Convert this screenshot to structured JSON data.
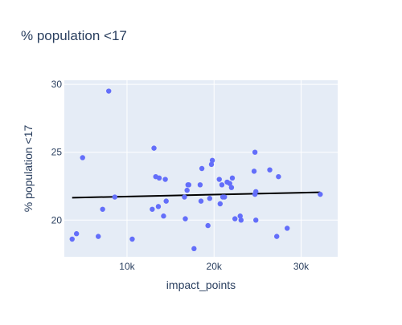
{
  "chart_data": {
    "type": "scatter",
    "title": "% population <17",
    "xlabel": "impact_points",
    "ylabel": "% population <17",
    "xlim": [
      2800,
      34200
    ],
    "ylim": [
      17.3,
      30.3
    ],
    "x_ticks": [
      {
        "value": 10000,
        "label": "10k"
      },
      {
        "value": 20000,
        "label": "20k"
      },
      {
        "value": 30000,
        "label": "30k"
      }
    ],
    "y_ticks": [
      {
        "value": 20,
        "label": "20"
      },
      {
        "value": 25,
        "label": "25"
      },
      {
        "value": 30,
        "label": "30"
      }
    ],
    "grid": true,
    "colors": {
      "plot_bg": "#e5ecf6",
      "marker": "#636efa",
      "trend": "#000000",
      "text": "#2a3f5f",
      "grid": "#ffffff"
    },
    "series": [
      {
        "mode": "markers",
        "x": [
          3700,
          4200,
          4900,
          6700,
          7200,
          7900,
          8600,
          10600,
          12900,
          13100,
          13300,
          13600,
          13700,
          14200,
          14400,
          14500,
          16600,
          16700,
          16900,
          17000,
          17100,
          17700,
          18400,
          18500,
          18600,
          19300,
          19500,
          19700,
          19800,
          20600,
          20700,
          20900,
          21000,
          21200,
          21500,
          21800,
          22000,
          22100,
          22400,
          23000,
          23100,
          24600,
          24700,
          24700,
          24800,
          24800,
          26400,
          27200,
          27400,
          28400,
          32200
        ],
        "y": [
          18.6,
          19.0,
          24.6,
          18.8,
          20.8,
          29.5,
          21.7,
          18.6,
          20.8,
          25.3,
          23.2,
          21.0,
          23.1,
          20.3,
          23.0,
          21.4,
          21.7,
          20.1,
          22.2,
          22.6,
          22.6,
          17.9,
          22.6,
          21.4,
          23.8,
          19.6,
          21.6,
          24.1,
          24.4,
          23.0,
          21.2,
          22.6,
          21.7,
          21.7,
          22.8,
          22.7,
          22.4,
          23.1,
          20.1,
          20.3,
          20.0,
          23.6,
          21.9,
          25.0,
          20.0,
          22.1,
          23.7,
          18.8,
          23.2,
          19.4,
          21.9
        ]
      },
      {
        "mode": "lines",
        "x": [
          3700,
          32200
        ],
        "y": [
          21.65,
          22.05
        ]
      }
    ]
  }
}
